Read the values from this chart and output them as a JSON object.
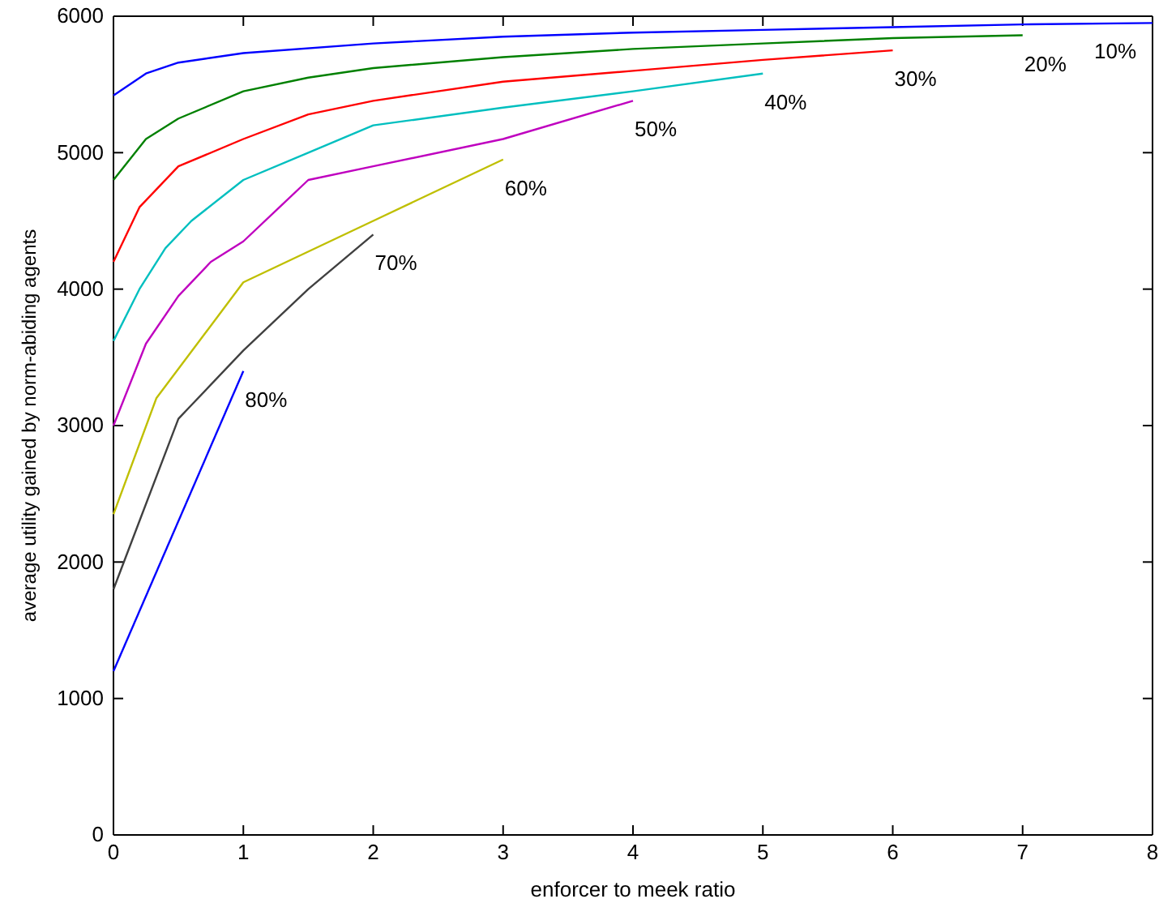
{
  "chart_data": {
    "type": "line",
    "xlabel": "enforcer to meek ratio",
    "ylabel": "average utility gained by norm-abiding agents",
    "xlim": [
      0,
      8
    ],
    "ylim": [
      0,
      6000
    ],
    "xticks": [
      0,
      1,
      2,
      3,
      4,
      5,
      6,
      7,
      8
    ],
    "yticks": [
      0,
      1000,
      2000,
      3000,
      4000,
      5000,
      6000
    ],
    "grid": false,
    "legend": false,
    "marker": "none",
    "line_style": "solid",
    "series": [
      {
        "name": "10%",
        "color": "#0000ff",
        "x": [
          0,
          0.25,
          0.5,
          1,
          2,
          3,
          4,
          5,
          6,
          7,
          8
        ],
        "values": [
          5420,
          5580,
          5660,
          5730,
          5800,
          5850,
          5880,
          5900,
          5920,
          5940,
          5950
        ]
      },
      {
        "name": "20%",
        "color": "#008000",
        "x": [
          0,
          0.25,
          0.5,
          1,
          1.5,
          2,
          3,
          4,
          5,
          6,
          7
        ],
        "values": [
          4800,
          5100,
          5250,
          5450,
          5550,
          5620,
          5700,
          5760,
          5800,
          5840,
          5860
        ]
      },
      {
        "name": "30%",
        "color": "#ff0000",
        "x": [
          0,
          0.2,
          0.5,
          1,
          1.5,
          2,
          3,
          4,
          5,
          6
        ],
        "values": [
          4200,
          4600,
          4900,
          5100,
          5280,
          5380,
          5520,
          5600,
          5680,
          5750
        ]
      },
      {
        "name": "40%",
        "color": "#00bfbf",
        "x": [
          0,
          0.2,
          0.4,
          0.6,
          1,
          1.5,
          2,
          3,
          4,
          5
        ],
        "values": [
          3620,
          4000,
          4300,
          4500,
          4800,
          5000,
          5200,
          5330,
          5450,
          5580
        ]
      },
      {
        "name": "50%",
        "color": "#bf00bf",
        "x": [
          0,
          0.25,
          0.5,
          0.75,
          1,
          1.5,
          2,
          3,
          4
        ],
        "values": [
          3000,
          3600,
          3950,
          4200,
          4350,
          4800,
          4900,
          5100,
          5380
        ]
      },
      {
        "name": "60%",
        "color": "#bfbf00",
        "x": [
          0,
          0.33,
          1,
          2,
          3
        ],
        "values": [
          2350,
          3200,
          4050,
          4500,
          4950
        ]
      },
      {
        "name": "70%",
        "color": "#404040",
        "x": [
          0,
          0.5,
          0.6,
          1,
          1.5,
          2
        ],
        "values": [
          1800,
          3050,
          3150,
          3550,
          4000,
          4400
        ]
      },
      {
        "name": "80%",
        "color": "#0000ff",
        "x": [
          0,
          1
        ],
        "values": [
          1200,
          3400
        ]
      }
    ]
  }
}
